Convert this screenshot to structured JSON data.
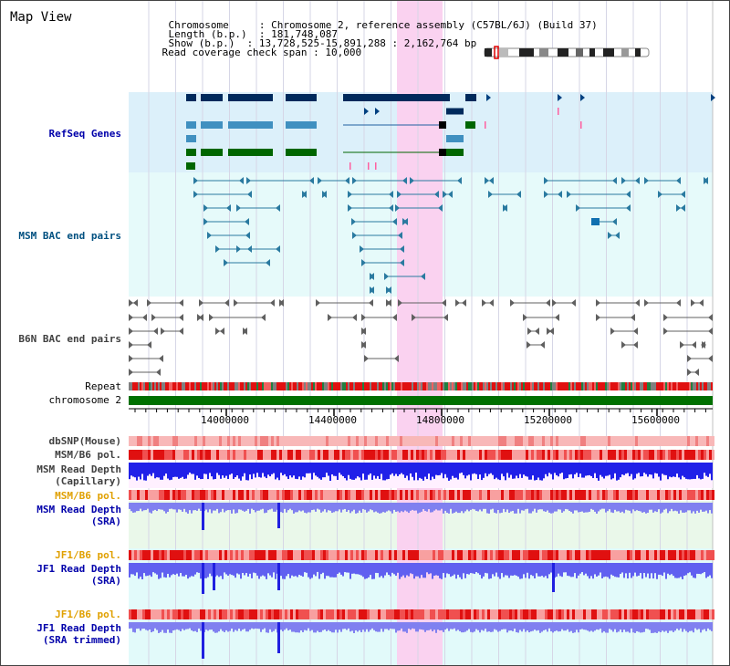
{
  "view_title": "Map View",
  "info": {
    "chromosome_key": "Chromosome",
    "chromosome_value": "Chromosome 2, reference assembly (C57BL/6J) (Build 37)",
    "length_key": "Length (b.p.)",
    "length_value": "181,748,087",
    "show_key": "Show (b.p.)",
    "show_value": "13,728,525-15,891,288 : 2,162,764 bp",
    "coverage_key": "Read coverage check span",
    "coverage_value": "10,000"
  },
  "tracks": {
    "refseq": "RefSeq Genes",
    "msm_bac": "MSM BAC end pairs",
    "b6n_bac": "B6N BAC end pairs",
    "repeat": "Repeat",
    "chromosome": "chromosome 2",
    "dbsnp": "dbSNP(Mouse)",
    "msm_b6_pol_1": "MSM/B6 pol.",
    "msm_depth_cap_1": "MSM Read Depth",
    "msm_depth_cap_2": "(Capillary)",
    "msm_b6_pol_2": "MSM/B6 pol.",
    "msm_depth_sra_1": "MSM Read Depth",
    "msm_depth_sra_2": "(SRA)",
    "jf1_b6_pol_1": "JF1/B6 pol.",
    "jf1_depth_sra_1": "JF1 Read Depth",
    "jf1_depth_sra_2": "(SRA)",
    "jf1_b6_pol_2": "JF1/B6 pol.",
    "jf1_depth_trim_1": "JF1 Read Depth",
    "jf1_depth_trim_2": "(SRA trimmed)"
  },
  "axis_ticks": [
    "14000000",
    "14400000",
    "14800000",
    "15200000",
    "15600000"
  ],
  "colors": {
    "refseq_bg": "#dcf0fa",
    "bac_bg": "#e6fafa",
    "highlight": "#fad2f0",
    "chromosome": "#007000",
    "label_blue": "#0000aa",
    "label_teal": "#005080",
    "label_orange": "#e0a000",
    "label_gray": "#404040"
  }
}
